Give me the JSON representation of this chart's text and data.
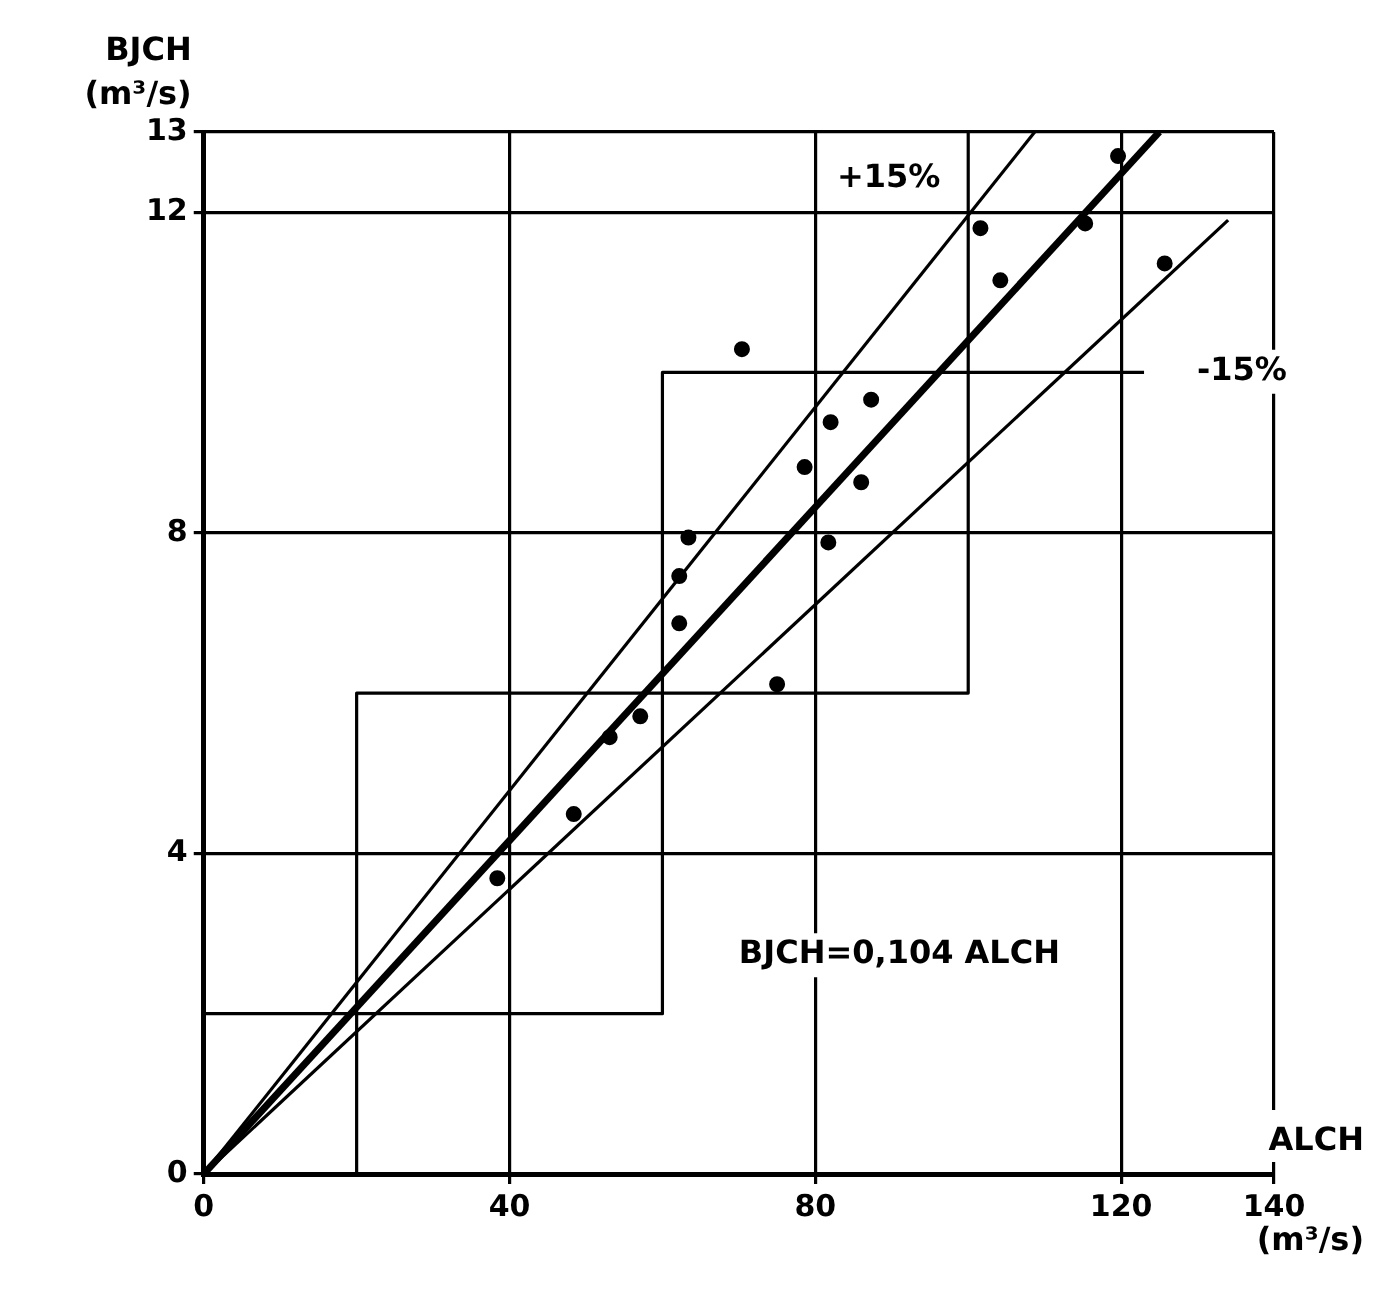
{
  "chart_data": {
    "type": "scatter",
    "xlabel": "ALCH (m³/s)",
    "ylabel": "BJCH (m³/s)",
    "xlim": [
      0,
      140
    ],
    "ylim": [
      0,
      13
    ],
    "xticks": [
      0,
      40,
      80,
      120,
      140
    ],
    "yticks": [
      0,
      4,
      8,
      12,
      13
    ],
    "grid": true,
    "legend": false,
    "series": [
      {
        "marker": "circle",
        "color": "#000000",
        "x": [
          38.4,
          48.4,
          53.1,
          57.1,
          62.2,
          62.2,
          63.4,
          75,
          78.6,
          81.7,
          82,
          86,
          87.3,
          70.4,
          101.6,
          104.2,
          115.3,
          119.6,
          125.7
        ],
        "values": [
          3.69,
          4.49,
          5.45,
          5.71,
          6.87,
          7.46,
          7.94,
          6.11,
          8.82,
          7.88,
          9.38,
          8.63,
          9.66,
          10.29,
          11.8,
          11.15,
          11.86,
          12.7,
          11.36
        ]
      },
      {
        "type": "line",
        "color": "#000000",
        "x": [
          0,
          125
        ],
        "values": [
          0,
          13
        ]
      },
      {
        "type": "line",
        "color": "#000000",
        "x": [
          0,
          108.7
        ],
        "values": [
          0,
          13
        ]
      },
      {
        "type": "line",
        "color": "#000000",
        "x": [
          0,
          134
        ],
        "values": [
          0,
          11.9
        ]
      },
      {
        "type": "line",
        "color": "#000000",
        "x": [
          0,
          60,
          60,
          123
        ],
        "values": [
          2,
          2,
          10,
          10
        ]
      },
      {
        "type": "line",
        "color": "#000000",
        "x": [
          20,
          20,
          100,
          100
        ],
        "values": [
          0,
          6,
          6,
          13
        ]
      }
    ],
    "annotations": [
      "+15%",
      "-15%",
      "BJCH=0,104 ALCH"
    ]
  }
}
